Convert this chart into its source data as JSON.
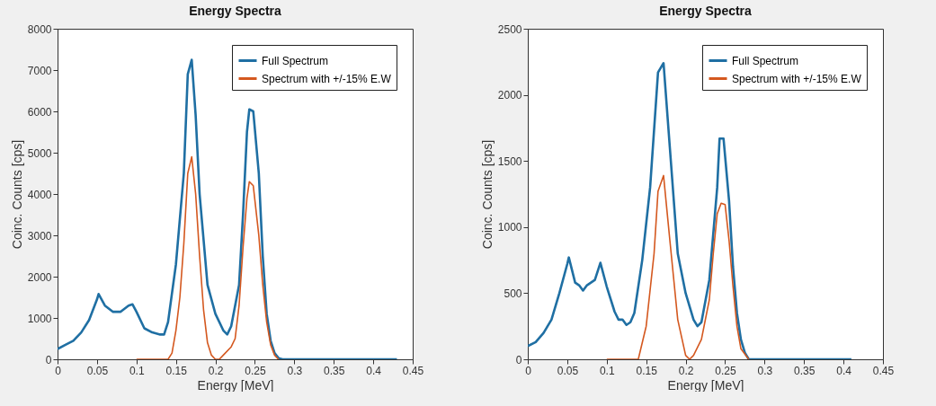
{
  "chart_data": [
    {
      "type": "line",
      "title": "Energy Spectra",
      "xlabel": "Energy [MeV]",
      "ylabel": "Coinc. Counts [cps]",
      "legend": "top right",
      "line_style": "solid",
      "xlim": [
        0,
        0.45
      ],
      "xticks": [
        0,
        0.05,
        0.1,
        0.15,
        0.2,
        0.25,
        0.3,
        0.35,
        0.4,
        0.45
      ],
      "ylim": [
        0,
        8000
      ],
      "yticks": [
        0,
        1000,
        2000,
        3000,
        4000,
        5000,
        6000,
        7000,
        8000
      ],
      "series": [
        {
          "name": "Full Spectrum",
          "color": "#1f6fa3",
          "x": [
            0,
            0.01,
            0.02,
            0.03,
            0.04,
            0.05,
            0.052,
            0.06,
            0.07,
            0.08,
            0.09,
            0.095,
            0.1,
            0.11,
            0.12,
            0.13,
            0.135,
            0.14,
            0.15,
            0.16,
            0.165,
            0.17,
            0.175,
            0.18,
            0.19,
            0.2,
            0.21,
            0.215,
            0.22,
            0.23,
            0.235,
            0.24,
            0.243,
            0.248,
            0.255,
            0.26,
            0.265,
            0.27,
            0.275,
            0.28,
            0.285,
            0.43
          ],
          "values": [
            250,
            350,
            450,
            650,
            950,
            1450,
            1580,
            1300,
            1150,
            1150,
            1300,
            1330,
            1150,
            750,
            650,
            600,
            600,
            900,
            2300,
            4500,
            6900,
            7250,
            5900,
            4000,
            1800,
            1100,
            700,
            600,
            800,
            1800,
            3500,
            5500,
            6050,
            6000,
            4500,
            2500,
            1100,
            450,
            150,
            30,
            0,
            0
          ]
        },
        {
          "name": "Spectrum with +/-15% E.W",
          "color": "#d4581f",
          "x": [
            0.1,
            0.14,
            0.145,
            0.15,
            0.155,
            0.16,
            0.165,
            0.17,
            0.175,
            0.18,
            0.185,
            0.19,
            0.195,
            0.2,
            0.205,
            0.21,
            0.22,
            0.225,
            0.23,
            0.235,
            0.24,
            0.243,
            0.248,
            0.255,
            0.26,
            0.265,
            0.27,
            0.275,
            0.28
          ],
          "values": [
            0,
            0,
            150,
            700,
            1500,
            2800,
            4500,
            4900,
            4000,
            2500,
            1200,
            400,
            100,
            0,
            0,
            100,
            300,
            500,
            1300,
            2700,
            3900,
            4300,
            4200,
            3000,
            1800,
            900,
            350,
            100,
            0
          ]
        }
      ]
    },
    {
      "type": "line",
      "title": "Energy Spectra",
      "xlabel": "Energy [MeV]",
      "ylabel": "Coinc. Counts [cps]",
      "legend": "top right",
      "line_style": "solid",
      "xlim": [
        0,
        0.45
      ],
      "xticks": [
        0,
        0.05,
        0.1,
        0.15,
        0.2,
        0.25,
        0.3,
        0.35,
        0.4,
        0.45
      ],
      "ylim": [
        0,
        2500
      ],
      "yticks": [
        0,
        500,
        1000,
        1500,
        2000,
        2500
      ],
      "series": [
        {
          "name": "Full Spectrum",
          "color": "#1f6fa3",
          "x": [
            0,
            0.01,
            0.02,
            0.03,
            0.04,
            0.05,
            0.052,
            0.06,
            0.065,
            0.07,
            0.075,
            0.085,
            0.092,
            0.1,
            0.11,
            0.115,
            0.12,
            0.125,
            0.13,
            0.135,
            0.145,
            0.155,
            0.165,
            0.172,
            0.18,
            0.19,
            0.2,
            0.21,
            0.215,
            0.22,
            0.23,
            0.24,
            0.243,
            0.248,
            0.255,
            0.26,
            0.265,
            0.27,
            0.275,
            0.28,
            0.41
          ],
          "values": [
            100,
            130,
            200,
            300,
            500,
            720,
            770,
            580,
            560,
            520,
            560,
            600,
            730,
            550,
            360,
            300,
            300,
            260,
            280,
            350,
            750,
            1300,
            2170,
            2240,
            1600,
            800,
            500,
            300,
            250,
            280,
            600,
            1300,
            1670,
            1670,
            1200,
            700,
            350,
            150,
            50,
            0,
            0
          ]
        },
        {
          "name": "Spectrum with +/-15% E.W",
          "color": "#d4581f",
          "x": [
            0.1,
            0.14,
            0.15,
            0.16,
            0.165,
            0.172,
            0.18,
            0.19,
            0.2,
            0.205,
            0.21,
            0.22,
            0.23,
            0.235,
            0.24,
            0.245,
            0.25,
            0.255,
            0.26,
            0.265,
            0.27,
            0.28
          ],
          "values": [
            0,
            0,
            250,
            800,
            1270,
            1390,
            900,
            300,
            30,
            0,
            30,
            150,
            450,
            800,
            1100,
            1180,
            1170,
            900,
            550,
            250,
            80,
            0
          ]
        }
      ]
    }
  ]
}
